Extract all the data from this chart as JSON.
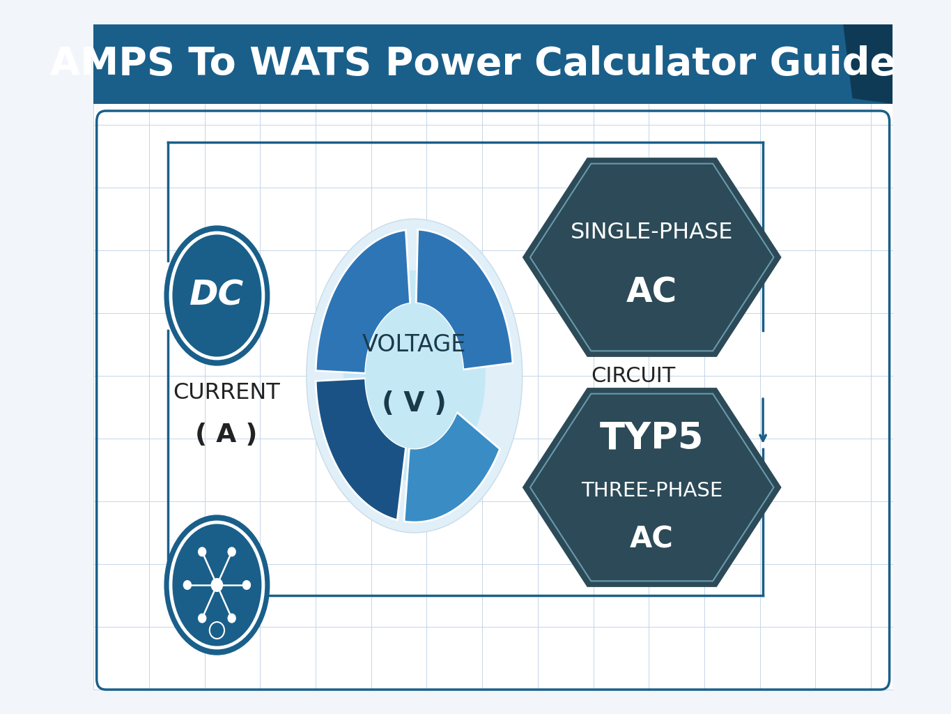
{
  "title": "AMPS To WATS Power Calculator Guide",
  "title_color": "#ffffff",
  "title_bg_color": "#1a5f8a",
  "title_bg_dark": "#0e3a56",
  "bg_color": "#f2f6fa",
  "grid_color": "#c5d5e5",
  "border_color": "#1a5f8a",
  "dc_text": "DC",
  "dc_circle_fill": "#1a5f8a",
  "dc_circle_edge": "#1a5f8a",
  "dc_text_color": "#ffffff",
  "network_circle_fill": "#1a5f8a",
  "network_circle_edge": "#1a5f8a",
  "current_label": "CURRENT",
  "current_sub": "( A )",
  "voltage_label": "VOLTAGE",
  "voltage_sub": "( V )",
  "circuit_label": "CIRCUIT",
  "donut_seg1_color": "#2e75b6",
  "donut_seg2_color": "#1a5285",
  "donut_seg3_color": "#3a8cc5",
  "donut_inner_color": "#c5e8f5",
  "donut_bg_color": "#e8f5fb",
  "hex1_bg": "#2c4a58",
  "hex1_line1": "SINGLE-PHASE",
  "hex1_line2": "AC",
  "hex2_bg": "#2c4a58",
  "hex2_line1": "TYP5",
  "hex2_line2": "THREE-PHASE",
  "hex2_line3": "AC",
  "hex_text_color": "#ffffff",
  "hex_border_color": "#6a9aaa",
  "label_color": "#222222",
  "line_color": "#1a5f8a",
  "line_width": 2.5
}
